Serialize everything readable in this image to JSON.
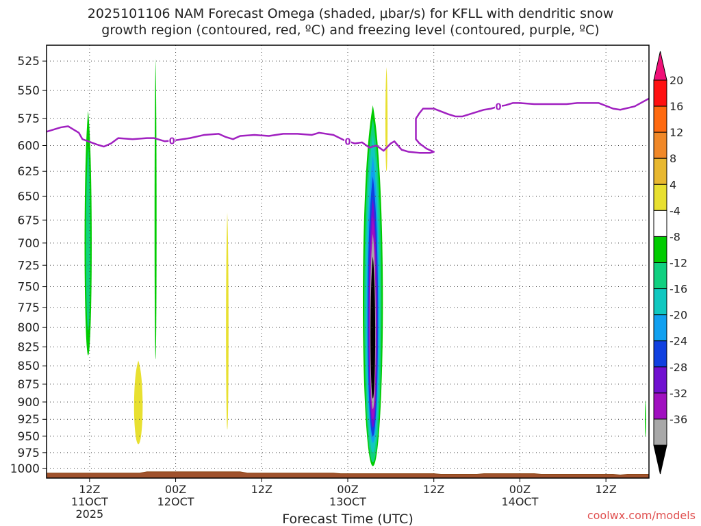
{
  "title_lines": [
    "2025101106 NAM Forecast Omega (shaded, μbar/s) for KFLL with dendritic snow",
    "growth region (contoured, red, ºC) and freezing level (contoured, purple, ºC)"
  ],
  "credit": "coolwx.com/models",
  "chart_data": {
    "type": "time-height cross section",
    "xlabel": "Forecast Time (UTC)",
    "ylabel": "",
    "x_ticks": [
      {
        "hour": 6,
        "label": "12Z",
        "sub": [
          "11OCT",
          "2025"
        ]
      },
      {
        "hour": 18,
        "label": "00Z",
        "sub": [
          "12OCT"
        ]
      },
      {
        "hour": 30,
        "label": "12Z",
        "sub": []
      },
      {
        "hour": 42,
        "label": "00Z",
        "sub": [
          "13OCT"
        ]
      },
      {
        "hour": 54,
        "label": "12Z",
        "sub": []
      },
      {
        "hour": 66,
        "label": "00Z",
        "sub": [
          "14OCT"
        ]
      },
      {
        "hour": 78,
        "label": "12Z",
        "sub": []
      }
    ],
    "xlim_hours": [
      0,
      84
    ],
    "y_ticks": [
      525,
      550,
      575,
      600,
      625,
      650,
      675,
      700,
      725,
      750,
      775,
      800,
      825,
      850,
      875,
      900,
      925,
      950,
      975,
      1000
    ],
    "ylim_hpa": [
      1015,
      512
    ],
    "y_scale": "log pressure (reversed)",
    "grid": true,
    "colorbar": {
      "labels": [
        "20",
        "16",
        "12",
        "8",
        "4",
        "-4",
        "-8",
        "-12",
        "-16",
        "-20",
        "-24",
        "-28",
        "-32",
        "-36"
      ],
      "colors": [
        "#ff1010",
        "#ff6a10",
        "#f08828",
        "#e8b830",
        "#e8e030",
        "#ffffff",
        "#00cc00",
        "#10d080",
        "#10c8c0",
        "#10a0f0",
        "#1040e0",
        "#7010d0",
        "#a010c0",
        "#a8a8a8"
      ],
      "top_arrow_color": "#f01078",
      "bottom_arrow_color": "#000000"
    },
    "freezing_level": {
      "label": "0",
      "color": "#a020c0",
      "points": [
        [
          0,
          587
        ],
        [
          2,
          583
        ],
        [
          3,
          582
        ],
        [
          4.5,
          588
        ],
        [
          5,
          594
        ],
        [
          7,
          599
        ],
        [
          8,
          601
        ],
        [
          9,
          598
        ],
        [
          10,
          593
        ],
        [
          12,
          594
        ],
        [
          14,
          593
        ],
        [
          15,
          593
        ],
        [
          16.5,
          596
        ],
        [
          18,
          595
        ],
        [
          20,
          593
        ],
        [
          22,
          590
        ],
        [
          24,
          589
        ],
        [
          25,
          592
        ],
        [
          26,
          594
        ],
        [
          27,
          591
        ],
        [
          29,
          590
        ],
        [
          31,
          591
        ],
        [
          33,
          589
        ],
        [
          35,
          589
        ],
        [
          37,
          590
        ],
        [
          38,
          588
        ],
        [
          40,
          590
        ],
        [
          41.5,
          595
        ],
        [
          42,
          596
        ],
        [
          43,
          598
        ],
        [
          44,
          597
        ],
        [
          45,
          602
        ],
        [
          46,
          600
        ],
        [
          47,
          605
        ],
        [
          48,
          598
        ],
        [
          48.5,
          596
        ],
        [
          49.5,
          604
        ],
        [
          50.5,
          606
        ],
        [
          52,
          607
        ],
        [
          53.5,
          607
        ],
        [
          54,
          606
        ],
        [
          53,
          603
        ],
        [
          52,
          598
        ],
        [
          51.5,
          594
        ],
        [
          51.5,
          575
        ],
        [
          52,
          570
        ],
        [
          52.5,
          566
        ],
        [
          54,
          566
        ],
        [
          56,
          571
        ],
        [
          57,
          573
        ],
        [
          58,
          573
        ],
        [
          60,
          569
        ],
        [
          61,
          567
        ],
        [
          62,
          566
        ],
        [
          63,
          564
        ],
        [
          64,
          563
        ],
        [
          65,
          561
        ],
        [
          66,
          561
        ],
        [
          68,
          562
        ],
        [
          69,
          562
        ],
        [
          71,
          562
        ],
        [
          72.5,
          562
        ],
        [
          74,
          561
        ],
        [
          77,
          561
        ],
        [
          79,
          566
        ],
        [
          80,
          567
        ],
        [
          82,
          564
        ],
        [
          84,
          557
        ]
      ],
      "label_hours": [
        17.5,
        42,
        63
      ]
    },
    "surface_pressure": [
      [
        0,
        1007
      ],
      [
        13,
        1007
      ],
      [
        14,
        1005
      ],
      [
        27,
        1005
      ],
      [
        28,
        1007
      ],
      [
        40,
        1007
      ],
      [
        41,
        1008
      ],
      [
        54,
        1008
      ],
      [
        55,
        1009
      ],
      [
        60,
        1009
      ],
      [
        61,
        1008
      ],
      [
        68,
        1008
      ],
      [
        69,
        1009
      ],
      [
        79,
        1009
      ],
      [
        80,
        1010
      ],
      [
        81,
        1009
      ],
      [
        84,
        1009
      ]
    ],
    "omega_features": [
      {
        "hour": 5.8,
        "p_top": 568,
        "p_bot": 836,
        "width": 1.0,
        "levels": [
          "#00cc00",
          "#10d080"
        ],
        "skew": 0
      },
      {
        "hour": 15.2,
        "p_top": 523,
        "p_bot": 841,
        "width": 0.28,
        "levels": [
          "#00cc00"
        ],
        "skew": 0
      },
      {
        "hour": 12.8,
        "p_top": 843,
        "p_bot": 962,
        "width": 1.2,
        "levels": [
          "#e8e030"
        ],
        "skew": 0
      },
      {
        "hour": 25.2,
        "p_top": 667,
        "p_bot": 940,
        "width": 0.35,
        "levels": [
          "#e8e030"
        ],
        "skew": 0
      },
      {
        "hour": 47.4,
        "p_top": 530,
        "p_bot": 625,
        "width": 0.3,
        "levels": [
          "#e8e030"
        ],
        "skew": 0
      },
      {
        "hour": 83.5,
        "p_top": 897,
        "p_bot": 951,
        "width": 0.15,
        "levels": [
          "#00cc00"
        ],
        "skew": 0
      },
      {
        "hour": 45.5,
        "p_top": 563,
        "p_bot": 996,
        "width": 2.8,
        "levels": [
          "#00cc00",
          "#10d080",
          "#10c8c0",
          "#10a0f0",
          "#1040e0",
          "#7010d0",
          "#a010c0",
          "#a8a8a8",
          "#000000"
        ],
        "level_tops": [
          563,
          575,
          590,
          610,
          630,
          652,
          670,
          690,
          715
        ],
        "level_bots": [
          996,
          990,
          975,
          960,
          950,
          937,
          925,
          910,
          895
        ],
        "level_widths": [
          2.8,
          2.4,
          2.0,
          1.7,
          1.45,
          1.2,
          1.0,
          0.8,
          0.65
        ]
      }
    ]
  }
}
